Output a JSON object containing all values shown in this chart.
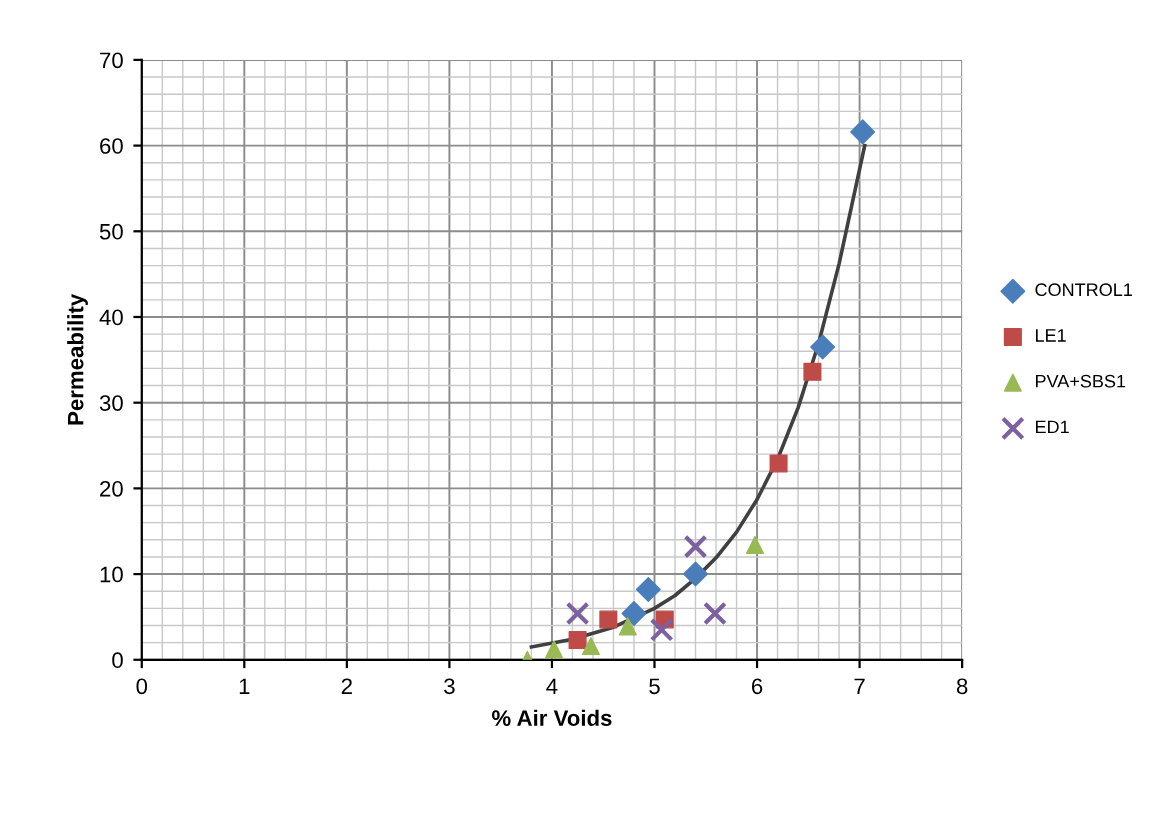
{
  "chart_data": {
    "type": "scatter",
    "xlabel": "% Air Voids",
    "ylabel": "Permeability",
    "xlim": [
      0,
      8
    ],
    "ylim": [
      0,
      70
    ],
    "xticks": [
      0,
      1,
      2,
      3,
      4,
      5,
      6,
      7,
      8
    ],
    "yticks": [
      0,
      10,
      20,
      30,
      40,
      50,
      60,
      70
    ],
    "grid": true,
    "legend": "right",
    "series": [
      {
        "name": "CONTROL1",
        "color": "#4a7ebb",
        "marker": "diamond",
        "x": [
          7.03,
          6.64,
          4.94,
          5.4,
          4.8
        ],
        "values": [
          61.6,
          36.5,
          8.2,
          10,
          5.4
        ]
      },
      {
        "name": "LE1",
        "color": "#be4b48",
        "marker": "square",
        "x": [
          6.54,
          6.21,
          5.1,
          4.55,
          4.25
        ],
        "values": [
          33.6,
          22.9,
          4.7,
          4.7,
          2.3
        ]
      },
      {
        "name": "PVA+SBS1",
        "color": "#98b954",
        "marker": "triangle",
        "x": [
          5.98,
          3.76,
          4.02,
          4.38,
          4.74
        ],
        "values": [
          13.4,
          0,
          1.2,
          1.6,
          3.9
        ]
      },
      {
        "name": "ED1",
        "color": "#7d60a0",
        "marker": "cross",
        "x": [
          5.4,
          5.59,
          4.25,
          5.07
        ],
        "values": [
          13.2,
          5.4,
          5.4,
          3.5
        ]
      },
      {
        "type": "line",
        "color": "#404040",
        "marker": "none",
        "x": [
          3.8,
          4.2,
          4.6,
          5.0,
          5.2,
          5.4,
          5.6,
          5.8,
          6.0,
          6.2,
          6.4,
          6.6,
          6.8,
          7.05
        ],
        "values": [
          1.5,
          2.4,
          3.8,
          6.0,
          7.5,
          9.5,
          11.9,
          14.9,
          18.7,
          23.4,
          29.4,
          36.9,
          46.2,
          60
        ]
      }
    ]
  }
}
